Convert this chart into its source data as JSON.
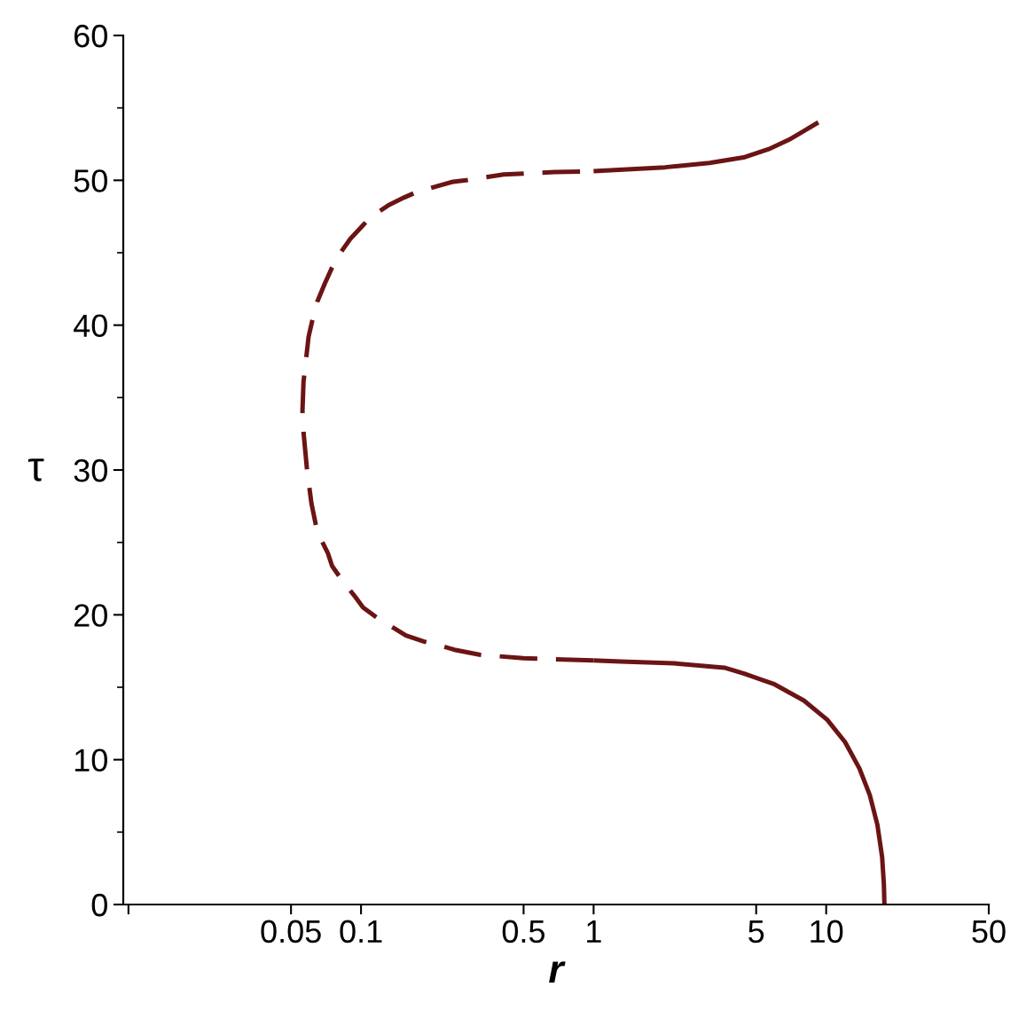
{
  "chart_data": {
    "type": "line",
    "xlabel": "r",
    "ylabel": "τ",
    "log": "x",
    "xlim": [
      0.0095,
      50
    ],
    "xticks": [
      {
        "value": 0.01,
        "label": null
      },
      0.05,
      0.1,
      0.5,
      1,
      5,
      10,
      50
    ],
    "ylim": [
      0,
      60
    ],
    "yticks": [
      0,
      {
        "value": 5,
        "label": null
      },
      10,
      {
        "value": 15,
        "label": null
      },
      20,
      {
        "value": 25,
        "label": null
      },
      30,
      {
        "value": 35,
        "label": null
      },
      40,
      {
        "value": 45,
        "label": null
      },
      50,
      {
        "value": 55,
        "label": null
      },
      60
    ],
    "series": [
      {
        "color": "#6b1414",
        "line_style": "solid",
        "x": [
          17.8,
          17.7,
          17.4,
          16.6,
          15.4,
          13.9,
          12.05,
          10.1,
          8.02,
          6.0,
          4.47,
          3.65,
          2.22,
          1.31,
          1.0
        ],
        "values": [
          0,
          1.43,
          3.27,
          5.51,
          7.55,
          9.39,
          11.22,
          12.76,
          14.08,
          15.2,
          15.92,
          16.35,
          16.65,
          16.78,
          16.85
        ]
      },
      {
        "color": "#6b1414",
        "line_style": "dashed",
        "x": [
          1.0,
          0.64,
          0.5,
          0.385,
          0.323,
          0.252,
          0.221,
          0.186,
          0.156,
          0.1387,
          0.118,
          0.102,
          0.0935,
          0.0832,
          0.0751,
          0.0719,
          0.0649,
          0.0612,
          0.0586,
          0.0566,
          0.056,
          0.0566,
          0.0595,
          0.0623,
          0.0649,
          0.0698,
          0.0751,
          0.0808,
          0.09,
          0.102,
          0.107,
          0.1124,
          0.131,
          0.1536,
          0.175,
          0.2486,
          0.283,
          0.41,
          0.68,
          1.0
        ],
        "values": [
          16.85,
          16.95,
          17.0,
          17.15,
          17.25,
          17.59,
          17.86,
          18.16,
          18.57,
          19.08,
          19.76,
          20.51,
          21.33,
          22.35,
          23.37,
          24.29,
          25.7,
          27.7,
          30.0,
          32.6,
          34.1,
          36.1,
          39.2,
          40.6,
          41.63,
          42.86,
          43.98,
          44.9,
          45.96,
          46.9,
          47.25,
          47.55,
          48.27,
          48.82,
          49.22,
          49.9,
          50.0,
          50.4,
          50.57,
          50.63
        ]
      },
      {
        "color": "#6b1414",
        "line_style": "solid",
        "x": [
          1.0,
          2.03,
          3.15,
          4.47,
          5.66,
          6.92,
          8.0,
          9.25
        ],
        "values": [
          50.63,
          50.9,
          51.2,
          51.6,
          52.15,
          52.8,
          53.4,
          54.0
        ]
      }
    ]
  }
}
